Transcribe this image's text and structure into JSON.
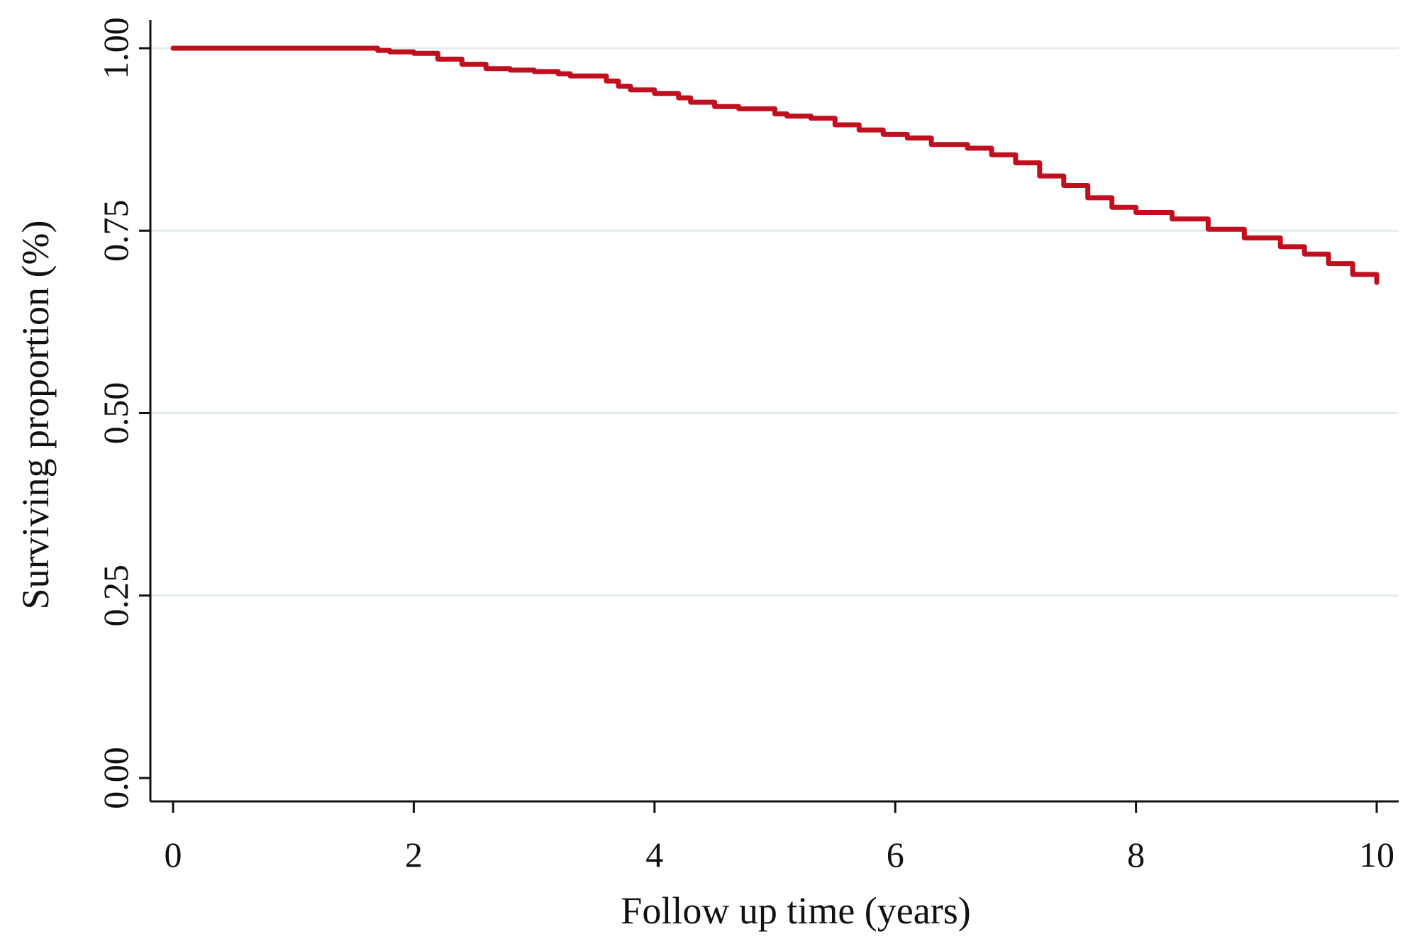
{
  "chart_data": {
    "type": "line",
    "title": "",
    "xlabel": "Follow up time (years)",
    "ylabel": "Surviving proportion (%)",
    "xlim": [
      0,
      10
    ],
    "ylim": [
      0,
      1
    ],
    "x_ticks": [
      {
        "value": 0,
        "label": "0"
      },
      {
        "value": 2,
        "label": "2"
      },
      {
        "value": 4,
        "label": "4"
      },
      {
        "value": 6,
        "label": "6"
      },
      {
        "value": 8,
        "label": "8"
      },
      {
        "value": 10,
        "label": "10"
      }
    ],
    "y_ticks": [
      {
        "value": 0,
        "label": "0.00"
      },
      {
        "value": 0.25,
        "label": "0.25"
      },
      {
        "value": 0.5,
        "label": "0.50"
      },
      {
        "value": 0.75,
        "label": "0.75"
      },
      {
        "value": 1,
        "label": "1.00"
      }
    ],
    "grid": "horizontal",
    "line_color": "#c0101f",
    "grid_color": "#e3ecef",
    "axis_color": "#111111",
    "series": [
      {
        "x": [
          0,
          1.5,
          1.7,
          1.8,
          2.0,
          2.2,
          2.4,
          2.6,
          2.8,
          3.0,
          3.2,
          3.3,
          3.5,
          3.6,
          3.7,
          3.8,
          4.0,
          4.2,
          4.3,
          4.5,
          4.7,
          5.0,
          5.1,
          5.3,
          5.5,
          5.7,
          5.9,
          6.1,
          6.3,
          6.6,
          6.8,
          7.0,
          7.2,
          7.4,
          7.6,
          7.8,
          8.0,
          8.3,
          8.6,
          8.9,
          9.2,
          9.4,
          9.6,
          9.8,
          10.0
        ],
        "y": [
          1.0,
          1.0,
          0.997,
          0.995,
          0.993,
          0.985,
          0.978,
          0.972,
          0.97,
          0.968,
          0.965,
          0.962,
          0.962,
          0.955,
          0.948,
          0.943,
          0.938,
          0.932,
          0.926,
          0.92,
          0.917,
          0.91,
          0.907,
          0.904,
          0.895,
          0.888,
          0.882,
          0.877,
          0.868,
          0.863,
          0.854,
          0.843,
          0.825,
          0.812,
          0.795,
          0.782,
          0.775,
          0.766,
          0.752,
          0.74,
          0.728,
          0.718,
          0.705,
          0.69,
          0.679
        ]
      }
    ]
  }
}
